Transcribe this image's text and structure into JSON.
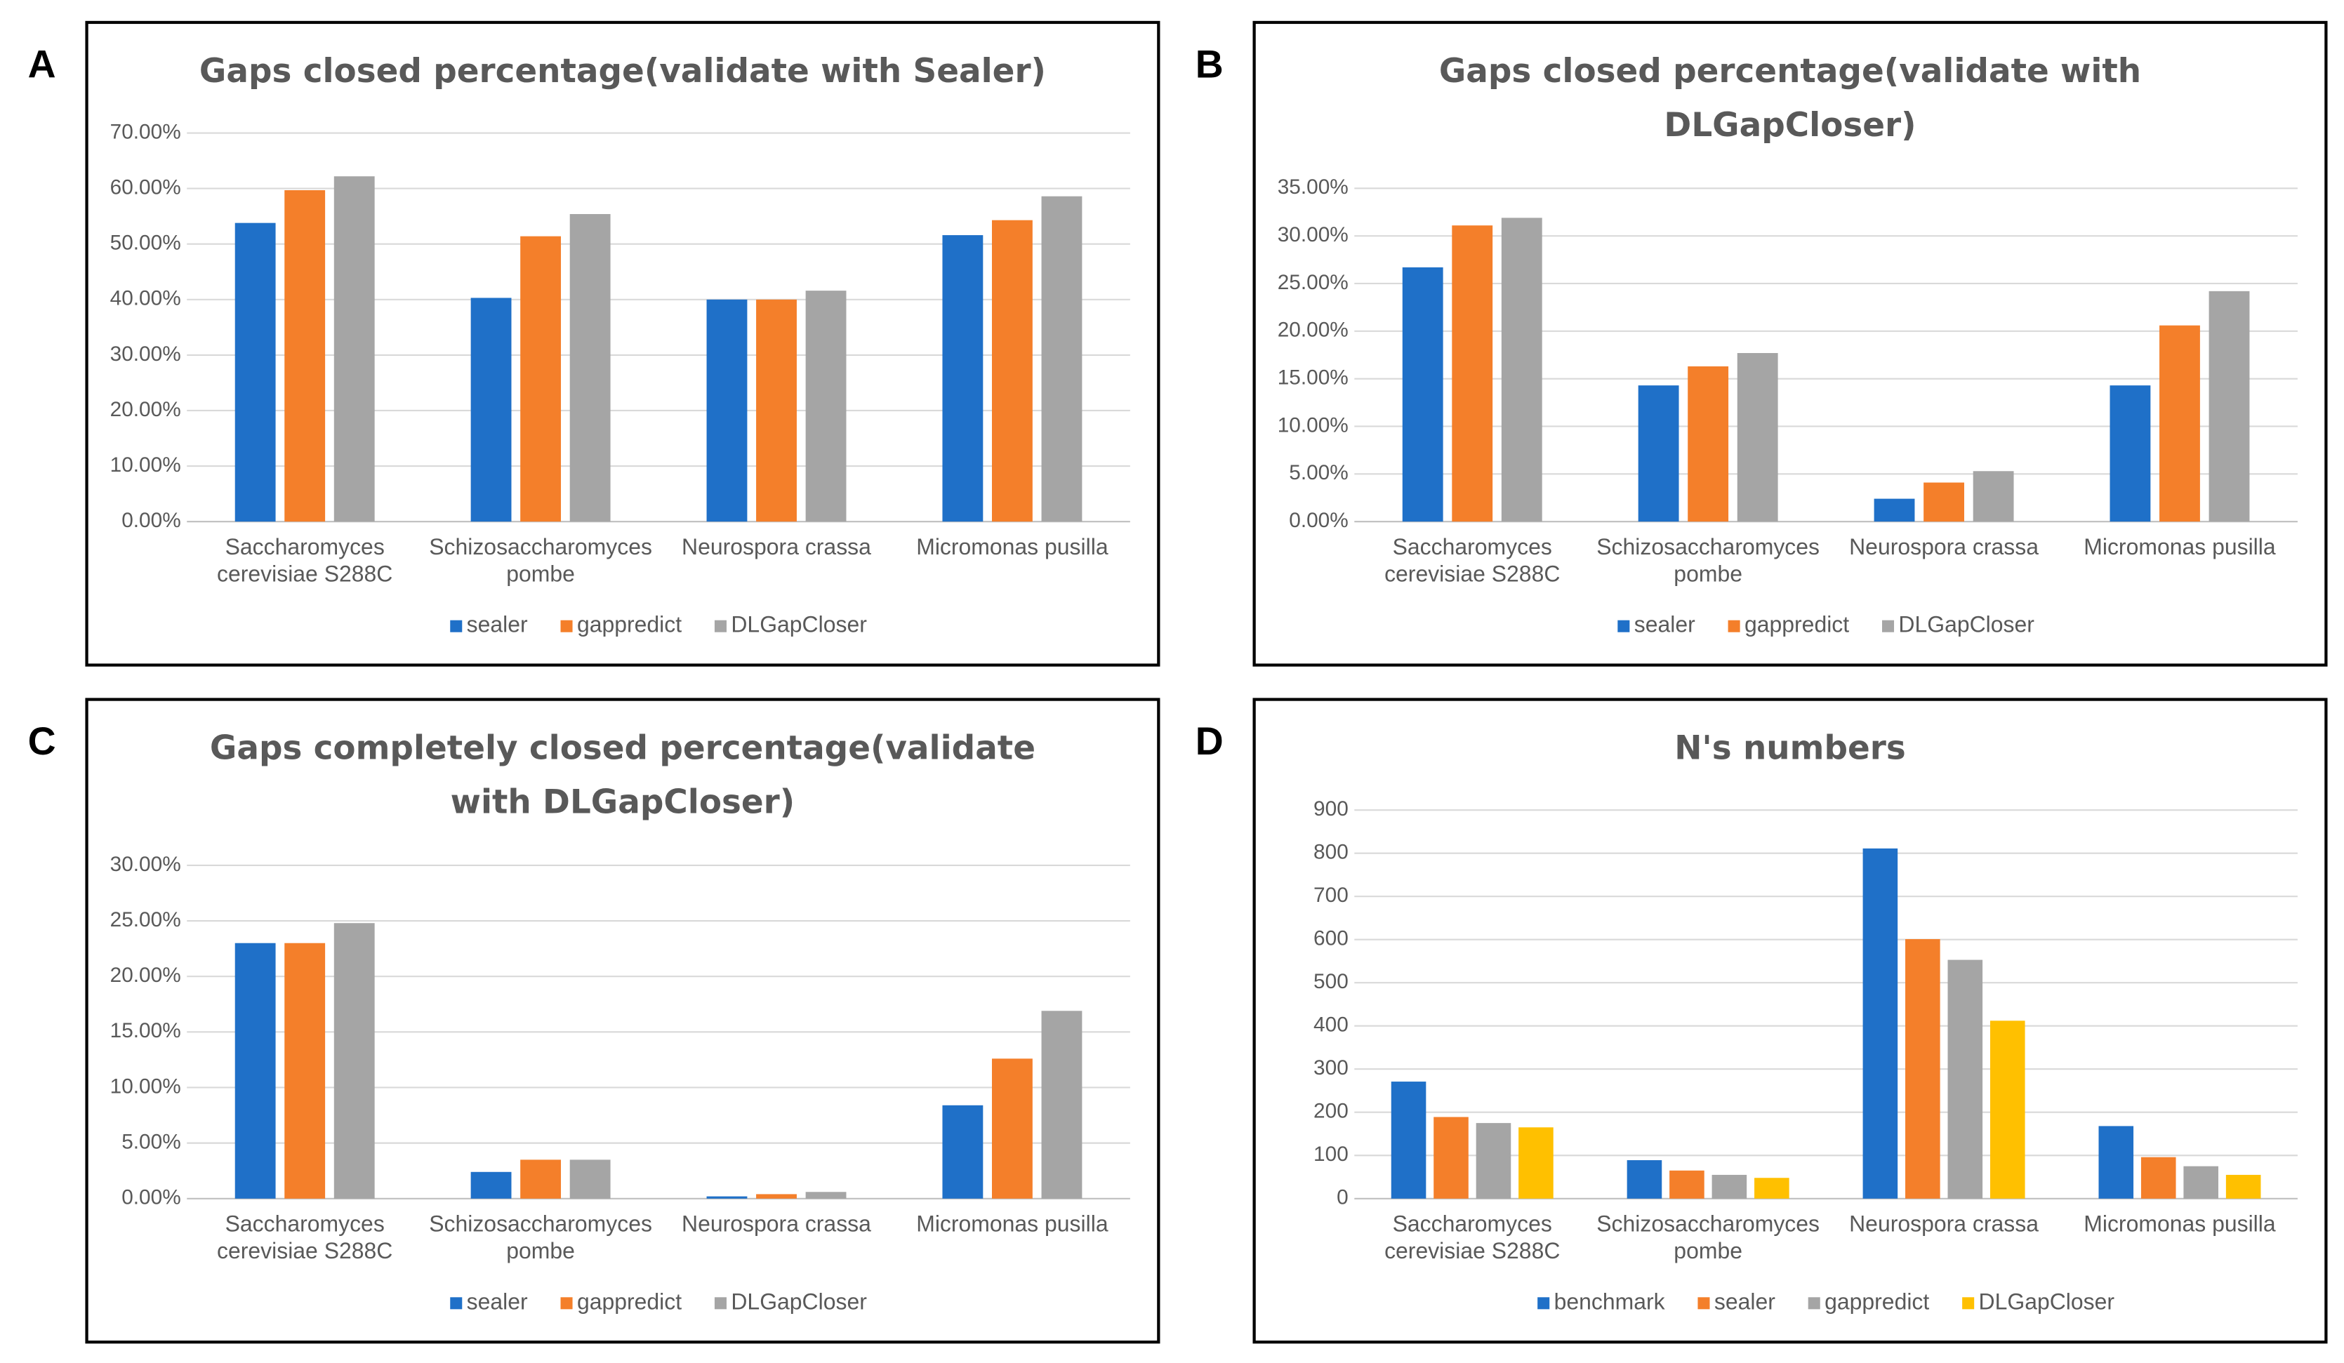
{
  "chart_data": [
    {
      "type": "bar",
      "panel": "A",
      "title": "Gaps closed percentage(validate with Sealer)",
      "categories": [
        "Saccharomyces cerevisiae S288C",
        "Schizosaccharomyces pombe",
        "Neurospora crassa",
        "Micromonas pusilla"
      ],
      "series": [
        {
          "name": "sealer",
          "color": "#1f70c8",
          "values": [
            53.8,
            40.3,
            40.0,
            51.6
          ]
        },
        {
          "name": "gappredict",
          "color": "#f47f2a",
          "values": [
            59.7,
            51.4,
            40.0,
            54.3
          ]
        },
        {
          "name": "DLGapCloser",
          "color": "#a5a5a5",
          "values": [
            62.2,
            55.4,
            41.6,
            58.6
          ]
        }
      ],
      "ylim": [
        0,
        70
      ],
      "yticks": [
        {
          "value": 0,
          "label": "0.00%"
        },
        {
          "value": 10,
          "label": "10.00%"
        },
        {
          "value": 20,
          "label": "20.00%"
        },
        {
          "value": 30,
          "label": "30.00%"
        },
        {
          "value": 40,
          "label": "40.00%"
        },
        {
          "value": 50,
          "label": "50.00%"
        },
        {
          "value": 60,
          "label": "60.00%"
        },
        {
          "value": 70,
          "label": "70.00%"
        }
      ],
      "grid": true,
      "legend": "bottom"
    },
    {
      "type": "bar",
      "panel": "B",
      "title": "Gaps closed percentage(validate with DLGapCloser)",
      "categories": [
        "Saccharomyces cerevisiae S288C",
        "Schizosaccharomyces pombe",
        "Neurospora crassa",
        "Micromonas pusilla"
      ],
      "series": [
        {
          "name": "sealer",
          "color": "#1f70c8",
          "values": [
            26.7,
            14.3,
            2.4,
            14.3
          ]
        },
        {
          "name": "gappredict",
          "color": "#f47f2a",
          "values": [
            31.1,
            16.3,
            4.1,
            20.6
          ]
        },
        {
          "name": "DLGapCloser",
          "color": "#a5a5a5",
          "values": [
            31.9,
            17.7,
            5.3,
            24.2
          ]
        }
      ],
      "ylim": [
        0,
        35
      ],
      "yticks": [
        {
          "value": 0,
          "label": "0.00%"
        },
        {
          "value": 5,
          "label": "5.00%"
        },
        {
          "value": 10,
          "label": "10.00%"
        },
        {
          "value": 15,
          "label": "15.00%"
        },
        {
          "value": 20,
          "label": "20.00%"
        },
        {
          "value": 25,
          "label": "25.00%"
        },
        {
          "value": 30,
          "label": "30.00%"
        },
        {
          "value": 35,
          "label": "35.00%"
        }
      ],
      "grid": true,
      "legend": "bottom"
    },
    {
      "type": "bar",
      "panel": "C",
      "title": "Gaps completely closed percentage(validate with DLGapCloser)",
      "categories": [
        "Saccharomyces cerevisiae S288C",
        "Schizosaccharomyces pombe",
        "Neurospora crassa",
        "Micromonas pusilla"
      ],
      "series": [
        {
          "name": "sealer",
          "color": "#1f70c8",
          "values": [
            23.0,
            2.4,
            0.2,
            8.4
          ]
        },
        {
          "name": "gappredict",
          "color": "#f47f2a",
          "values": [
            23.0,
            3.5,
            0.4,
            12.6
          ]
        },
        {
          "name": "DLGapCloser",
          "color": "#a5a5a5",
          "values": [
            24.8,
            3.5,
            0.6,
            16.9
          ]
        }
      ],
      "ylim": [
        0,
        30
      ],
      "yticks": [
        {
          "value": 0,
          "label": "0.00%"
        },
        {
          "value": 5,
          "label": "5.00%"
        },
        {
          "value": 10,
          "label": "10.00%"
        },
        {
          "value": 15,
          "label": "15.00%"
        },
        {
          "value": 20,
          "label": "20.00%"
        },
        {
          "value": 25,
          "label": "25.00%"
        },
        {
          "value": 30,
          "label": "30.00%"
        }
      ],
      "grid": true,
      "legend": "bottom"
    },
    {
      "type": "bar",
      "panel": "D",
      "title": "N's numbers",
      "categories": [
        "Saccharomyces cerevisiae S288C",
        "Schizosaccharomyces pombe",
        "Neurospora crassa",
        "Micromonas pusilla"
      ],
      "series": [
        {
          "name": "benchmark",
          "color": "#1f70c8",
          "values": [
            271,
            89,
            811,
            168
          ]
        },
        {
          "name": "sealer",
          "color": "#f47f2a",
          "values": [
            189,
            65,
            601,
            96
          ]
        },
        {
          "name": "gappredict",
          "color": "#a5a5a5",
          "values": [
            175,
            55,
            553,
            75
          ]
        },
        {
          "name": "DLGapCloser",
          "color": "#ffc000",
          "values": [
            165,
            48,
            412,
            55
          ]
        }
      ],
      "ylim": [
        0,
        900
      ],
      "yticks": [
        0,
        100,
        200,
        300,
        400,
        500,
        600,
        700,
        800,
        900
      ],
      "grid": true,
      "legend": "bottom"
    }
  ]
}
